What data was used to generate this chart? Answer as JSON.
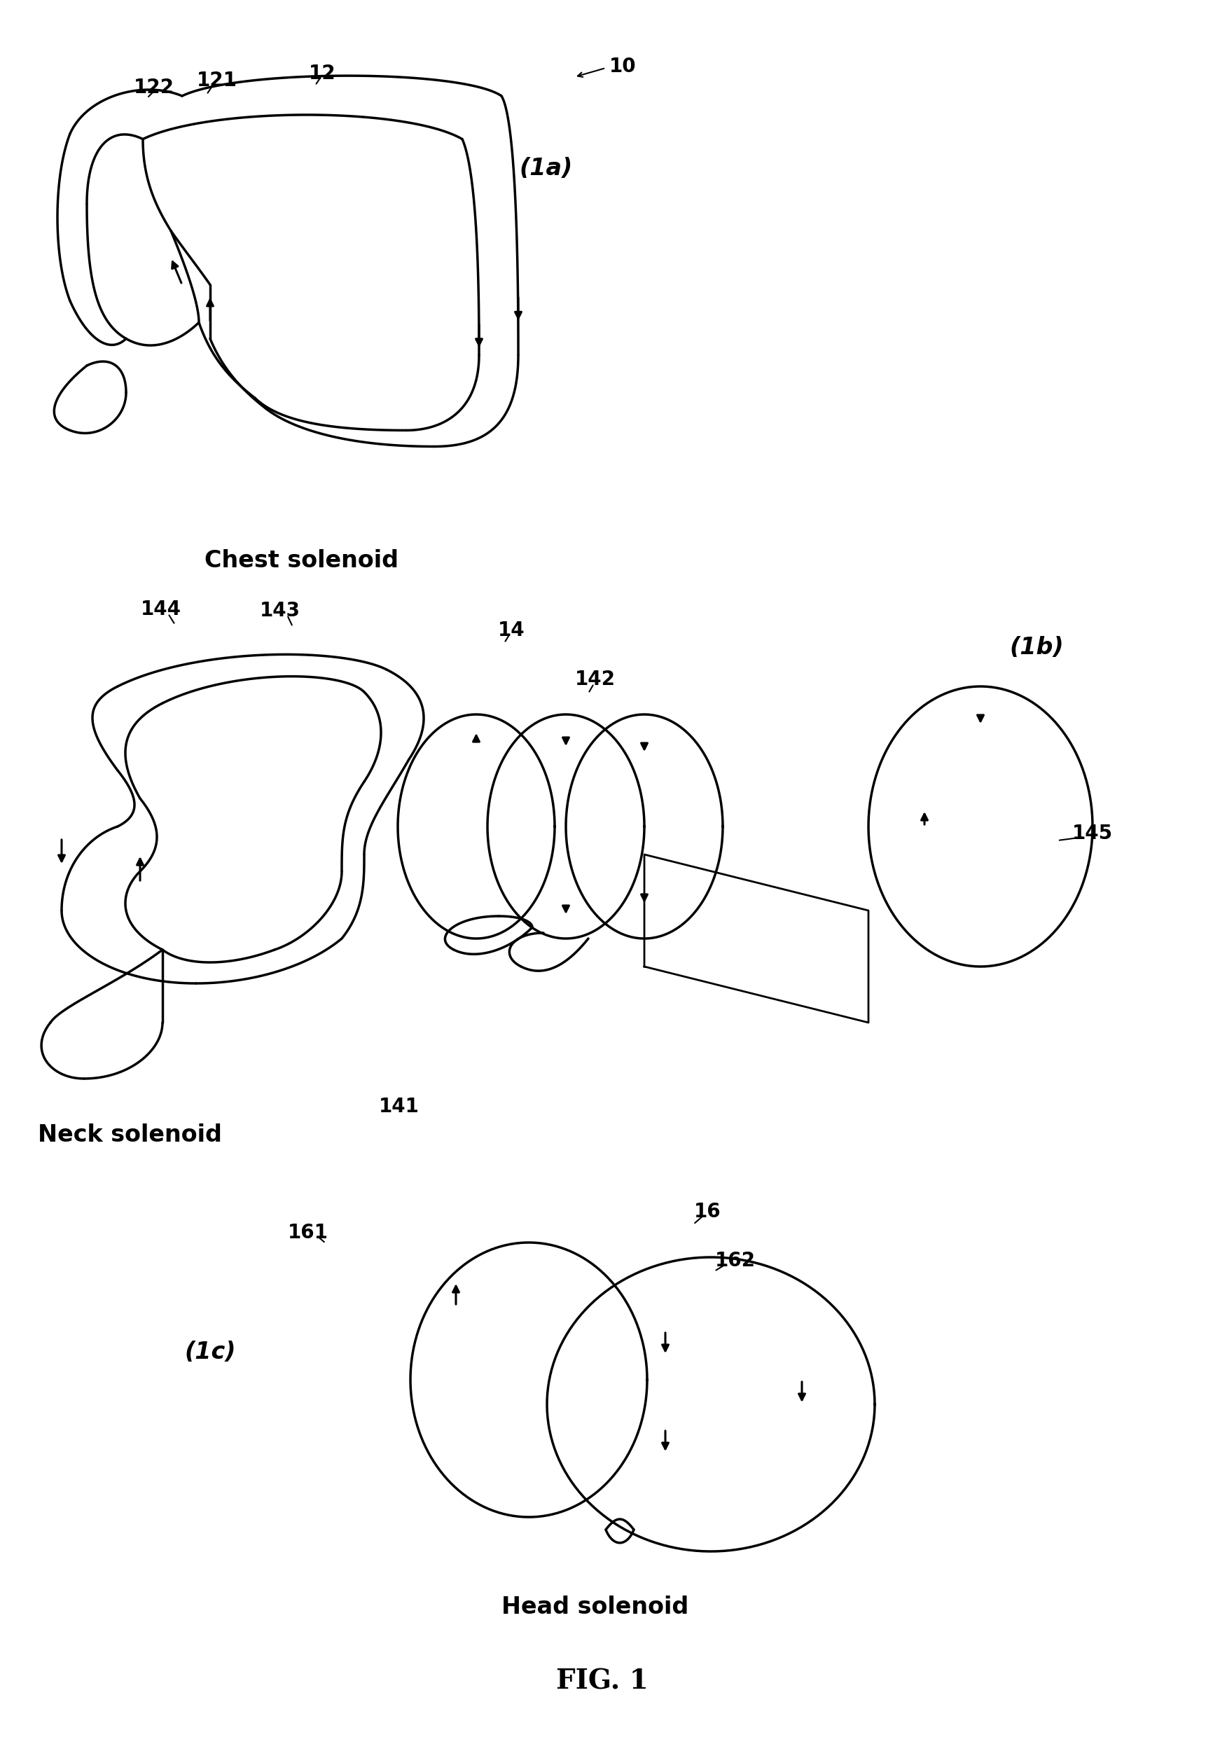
{
  "bg_color": "#ffffff",
  "line_color": "#000000",
  "line_width": 2.2,
  "title": "FIG. 1",
  "label_fontsize": 18,
  "title_fontsize": 26,
  "annotations": {
    "panel_a": {
      "label": "(1a)",
      "chest_label": "Chest solenoid",
      "ref_10": "10",
      "ref_12": "12",
      "ref_121": "121",
      "ref_122": "122"
    },
    "panel_b": {
      "label": "(1b)",
      "neck_label": "Neck solenoid",
      "ref_14": "14",
      "ref_141": "141",
      "ref_142": "142",
      "ref_143": "143",
      "ref_144": "144",
      "ref_145": "145"
    },
    "panel_c": {
      "label": "(1c)",
      "head_label": "Head solenoid",
      "ref_16": "16",
      "ref_161": "161",
      "ref_162": "162"
    }
  }
}
